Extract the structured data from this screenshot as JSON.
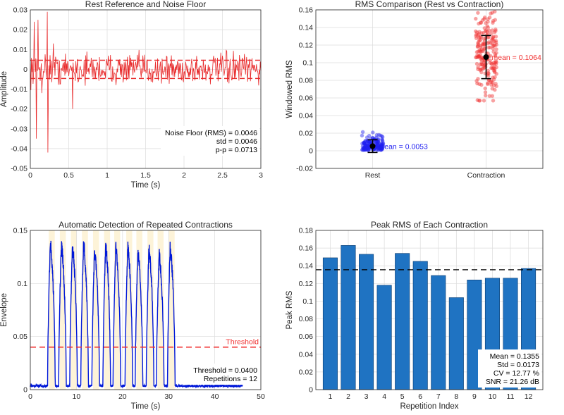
{
  "chart_data": [
    {
      "type": "line",
      "title": "Rest Reference and Noise Floor",
      "xlabel": "Time (s)",
      "ylabel": "Amplitude",
      "xlim": [
        0,
        3
      ],
      "ylim": [
        -0.05,
        0.03
      ],
      "xticks": [
        0,
        0.5,
        1,
        1.5,
        2,
        2.5,
        3
      ],
      "xtick_labels": [
        "0",
        "0.5",
        "1",
        "1.5",
        "2",
        "2.5",
        "3"
      ],
      "yticks": [
        -0.05,
        -0.04,
        -0.03,
        -0.02,
        -0.01,
        0,
        0.01,
        0.02,
        0.03
      ],
      "ytick_labels": [
        "-0.05",
        "-0.04",
        "-0.03",
        "-0.02",
        "-0.01",
        "0",
        "0.01",
        "0.02",
        "0.03"
      ],
      "grid": true,
      "signal_color": "#e8292a",
      "noise_rms": 0.0046,
      "threshold_lines": [
        0.0046,
        -0.0046
      ],
      "signal_spikes": [
        {
          "x": 0.05,
          "y": 0.024
        },
        {
          "x": 0.08,
          "y": -0.035
        },
        {
          "x": 0.1,
          "y": 0.025
        },
        {
          "x": 0.15,
          "y": -0.012
        },
        {
          "x": 0.22,
          "y": 0.029
        },
        {
          "x": 0.23,
          "y": -0.042
        },
        {
          "x": 0.3,
          "y": 0.013
        },
        {
          "x": 0.55,
          "y": -0.02
        }
      ],
      "annotation_lines": [
        "Noise Floor (RMS) = 0.0046",
        "std = 0.0046",
        "p-p = 0.0713"
      ]
    },
    {
      "type": "scatter",
      "title": "RMS Comparison (Rest vs Contraction)",
      "xlabel": "",
      "ylabel": "Windowed RMS",
      "categories": [
        "Rest",
        "Contraction"
      ],
      "ylim": [
        -0.02,
        0.16
      ],
      "yticks": [
        -0.02,
        0,
        0.02,
        0.04,
        0.06,
        0.08,
        0.1,
        0.12,
        0.14,
        0.16
      ],
      "ytick_labels": [
        "-0.02",
        "0",
        "0.02",
        "0.04",
        "0.06",
        "0.08",
        "0.1",
        "0.12",
        "0.14",
        "0.16"
      ],
      "grid": true,
      "groups": [
        {
          "name": "Rest",
          "color": "#1f1ff0",
          "mean": 0.0053,
          "sd": 0.0072,
          "min": 0.0,
          "max": 0.059,
          "annotation": "mean = 0.0053"
        },
        {
          "name": "Contraction",
          "color": "#f03030",
          "mean": 0.1064,
          "sd": 0.0245,
          "min": 0.057,
          "max": 0.158,
          "annotation": "mean = 0.1064"
        }
      ]
    },
    {
      "type": "line",
      "title": "Automatic Detection of Repeated Contractions",
      "xlabel": "Time (s)",
      "ylabel": "Envelope",
      "xlim": [
        0,
        50
      ],
      "ylim": [
        0,
        0.15
      ],
      "xticks": [
        0,
        10,
        20,
        30,
        40,
        50
      ],
      "xtick_labels": [
        "0",
        "10",
        "20",
        "30",
        "40",
        "50"
      ],
      "yticks": [
        0,
        0.05,
        0.1,
        0.15
      ],
      "ytick_labels": [
        "0",
        "0.05",
        "0.1",
        "0.15"
      ],
      "grid": true,
      "envelope_color": "#0018d8",
      "threshold": 0.04,
      "threshold_label": "Threshold",
      "threshold_color": "#f03030",
      "highlight_color": "#fdf3d8",
      "contractions": [
        {
          "start": 4.0,
          "end": 5.3,
          "peak": 0.144
        },
        {
          "start": 6.4,
          "end": 7.7,
          "peak": 0.142
        },
        {
          "start": 8.8,
          "end": 10.1,
          "peak": 0.141
        },
        {
          "start": 11.2,
          "end": 12.5,
          "peak": 0.143
        },
        {
          "start": 13.6,
          "end": 14.9,
          "peak": 0.137
        },
        {
          "start": 16.0,
          "end": 17.3,
          "peak": 0.141
        },
        {
          "start": 18.2,
          "end": 19.5,
          "peak": 0.14
        },
        {
          "start": 20.8,
          "end": 22.1,
          "peak": 0.14
        },
        {
          "start": 23.0,
          "end": 24.3,
          "peak": 0.135
        },
        {
          "start": 25.4,
          "end": 26.7,
          "peak": 0.138
        },
        {
          "start": 27.6,
          "end": 28.9,
          "peak": 0.133
        },
        {
          "start": 30.0,
          "end": 31.3,
          "peak": 0.14
        }
      ],
      "rest_end": 46,
      "annotation_lines": [
        "Threshold = 0.0400",
        "Repetitions = 12"
      ]
    },
    {
      "type": "bar",
      "title": "Peak RMS of Each Contraction",
      "xlabel": "Repetition Index",
      "ylabel": "Peak RMS",
      "categories": [
        "1",
        "2",
        "3",
        "4",
        "5",
        "6",
        "7",
        "8",
        "9",
        "10",
        "11",
        "12"
      ],
      "values": [
        0.149,
        0.163,
        0.153,
        0.118,
        0.154,
        0.145,
        0.129,
        0.104,
        0.124,
        0.126,
        0.126,
        0.137
      ],
      "ylim": [
        0,
        0.18
      ],
      "yticks": [
        0,
        0.02,
        0.04,
        0.06,
        0.08,
        0.1,
        0.12,
        0.14,
        0.16,
        0.18
      ],
      "ytick_labels": [
        "0",
        "0.02",
        "0.04",
        "0.06",
        "0.08",
        "0.1",
        "0.12",
        "0.14",
        "0.16",
        "0.18"
      ],
      "grid": true,
      "bar_color": "#1f73c2",
      "mean_line": 0.1355,
      "annotation_lines": [
        "Mean = 0.1355",
        "Std = 0.0173",
        "CV = 12.77 %",
        "SNR = 21.26 dB"
      ]
    }
  ]
}
